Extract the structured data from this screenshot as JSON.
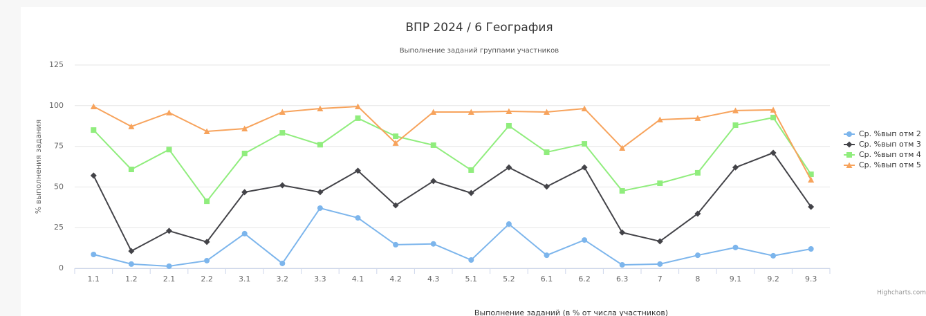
{
  "chart_data": {
    "type": "line",
    "title": "ВПР 2024 / 6 География",
    "subtitle": "Выполнение заданий группами участников",
    "y_label": "% выполнения задания",
    "x_label": "Выполнение заданий (в % от числа участников)",
    "credits": "Highcharts.com",
    "categories": [
      "1.1",
      "1.2",
      "2.1",
      "2.2",
      "3.1",
      "3.2",
      "3.3",
      "4.1",
      "4.2",
      "4.3",
      "5.1",
      "5.2",
      "6.1",
      "6.2",
      "6.3",
      "7",
      "8",
      "9.1",
      "9.2",
      "9.3"
    ],
    "ylim": [
      0,
      125
    ],
    "yticks": [
      0,
      25,
      50,
      75,
      100,
      125
    ],
    "grid": true,
    "legend": "right",
    "series": [
      {
        "name": "Ср. %вып отм 2",
        "color": "#7cb5ec",
        "marker": "circle",
        "values": [
          8.5,
          2.6,
          1.3,
          4.7,
          21.3,
          3,
          37,
          31,
          14.5,
          15,
          5.1,
          27.2,
          8,
          17.4,
          2.1,
          2.6,
          8,
          12.8,
          7.7,
          11.9
        ]
      },
      {
        "name": "Ср. %вып отм 3",
        "color": "#434348",
        "marker": "diamond",
        "values": [
          57,
          10.6,
          23,
          16.2,
          46.8,
          51,
          46.8,
          60,
          38.7,
          53.6,
          46.3,
          62,
          50.2,
          62,
          22,
          16.6,
          33.6,
          62,
          71,
          37.8
        ]
      },
      {
        "name": "Ср. %вып отм 4",
        "color": "#90ed7d",
        "marker": "square",
        "values": [
          85,
          60.8,
          73,
          41.2,
          70.6,
          83.3,
          76,
          92.3,
          81.2,
          75.7,
          60.4,
          87.6,
          71.4,
          76.5,
          47.6,
          52.3,
          58.7,
          88,
          92.7,
          57.8
        ]
      },
      {
        "name": "Ср. %вып отм 5",
        "color": "#f7a35c",
        "marker": "triangle",
        "values": [
          99.5,
          87.2,
          95.7,
          84.2,
          85.9,
          96.1,
          98.2,
          99.5,
          77,
          96.1,
          96.1,
          96.5,
          96.1,
          98.2,
          74,
          91.4,
          92.3,
          97,
          97.4,
          54.4
        ]
      }
    ]
  }
}
